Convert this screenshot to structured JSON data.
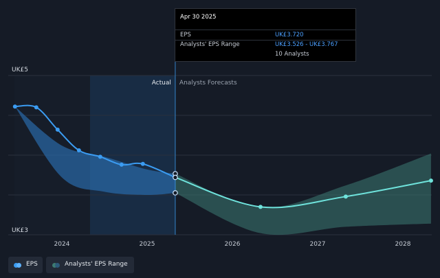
{
  "chart_data": {
    "type": "line",
    "x_unit": "year",
    "y_range": [
      3,
      5
    ],
    "y_tick_labels": [
      {
        "value": 5,
        "label": "UK£5"
      },
      {
        "value": 3,
        "label": "UK£3"
      }
    ],
    "x_tick_labels": [
      "2024",
      "2025",
      "2026",
      "2027",
      "2028"
    ],
    "region_labels": {
      "actual": "Actual",
      "forecast": "Analysts Forecasts"
    },
    "colors": {
      "eps": "#3b9cf2",
      "forecast": "#6fe3dc",
      "eps_band": "#2a6aa8",
      "forecast_band": "#3d7a72",
      "background": "#151b26"
    },
    "series": [
      {
        "name": "EPS",
        "points": [
          {
            "x": 2023.45,
            "y": 4.61
          },
          {
            "x": 2023.7,
            "y": 4.6
          },
          {
            "x": 2023.95,
            "y": 4.32
          },
          {
            "x": 2024.2,
            "y": 4.06
          },
          {
            "x": 2024.45,
            "y": 3.98
          },
          {
            "x": 2024.7,
            "y": 3.88
          },
          {
            "x": 2024.95,
            "y": 3.89
          },
          {
            "x": 2025.33,
            "y": 3.72
          }
        ]
      },
      {
        "name": "Analysts' EPS Range",
        "forecast_points": [
          {
            "x": 2025.33,
            "y": 3.72
          },
          {
            "x": 2026.33,
            "y": 3.35
          },
          {
            "x": 2027.33,
            "y": 3.48
          },
          {
            "x": 2028.33,
            "y": 3.68
          }
        ],
        "band_high": [
          {
            "x": 2025.33,
            "y": 3.767
          },
          {
            "x": 2026.33,
            "y": 3.34
          },
          {
            "x": 2027.33,
            "y": 3.62
          },
          {
            "x": 2028.33,
            "y": 4.02
          }
        ],
        "band_low": [
          {
            "x": 2025.33,
            "y": 3.526
          },
          {
            "x": 2026.33,
            "y": 3.02
          },
          {
            "x": 2027.33,
            "y": 3.1
          },
          {
            "x": 2028.33,
            "y": 3.14
          }
        ]
      }
    ],
    "history_band_high": [
      {
        "x": 2023.45,
        "y": 4.61
      },
      {
        "x": 2024.0,
        "y": 4.12
      },
      {
        "x": 2024.5,
        "y": 3.98
      },
      {
        "x": 2025.0,
        "y": 3.82
      },
      {
        "x": 2025.33,
        "y": 3.767
      }
    ],
    "history_band_low": [
      {
        "x": 2023.45,
        "y": 4.61
      },
      {
        "x": 2024.0,
        "y": 3.72
      },
      {
        "x": 2024.5,
        "y": 3.54
      },
      {
        "x": 2025.0,
        "y": 3.5
      },
      {
        "x": 2025.33,
        "y": 3.526
      }
    ],
    "tooltip": {
      "date": "Apr 30 2025",
      "rows": [
        {
          "label": "EPS",
          "value": "UK£3.720"
        },
        {
          "label": "Analysts' EPS Range",
          "value": "UK£3.526 - UK£3.767"
        },
        {
          "label": "",
          "value": "10 Analysts"
        }
      ]
    }
  },
  "legend": [
    {
      "label": "EPS",
      "color": "#3b9cf2",
      "icon": "eps-dot-icon"
    },
    {
      "label": "Analysts' EPS Range",
      "color": "#3d7a72",
      "icon": "range-dot-icon"
    }
  ]
}
